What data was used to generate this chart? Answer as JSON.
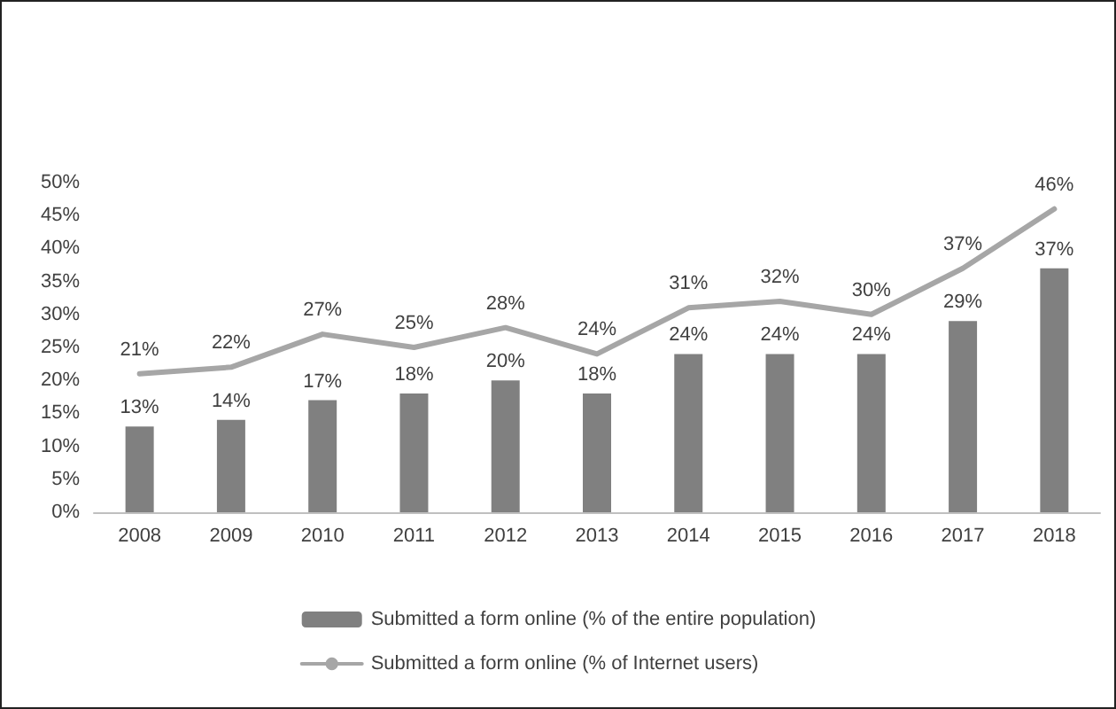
{
  "chart_data": {
    "type": "bar",
    "categories": [
      "2008",
      "2009",
      "2010",
      "2011",
      "2012",
      "2013",
      "2014",
      "2015",
      "2016",
      "2017",
      "2018"
    ],
    "series": [
      {
        "name": "Submitted a form online (% of the entire population)",
        "color": "#808080",
        "values": [
          13,
          14,
          17,
          18,
          20,
          18,
          24,
          24,
          24,
          29,
          37
        ],
        "value_labels": [
          "13%",
          "14%",
          "17%",
          "18%",
          "20%",
          "18%",
          "24%",
          "24%",
          "24%",
          "29%",
          "37%"
        ]
      },
      {
        "type": "line",
        "name": "Submitted a form online (% of Internet users)",
        "color": "#a6a6a6",
        "values": [
          21,
          22,
          27,
          25,
          28,
          24,
          31,
          32,
          30,
          37,
          46
        ],
        "value_labels": [
          "21%",
          "22%",
          "27%",
          "25%",
          "28%",
          "24%",
          "31%",
          "32%",
          "30%",
          "37%",
          "46%"
        ]
      }
    ],
    "ylim": [
      0,
      50
    ],
    "yticks": [
      {
        "value": 0,
        "label": "0%"
      },
      {
        "value": 5,
        "label": "5%"
      },
      {
        "value": 10,
        "label": "10%"
      },
      {
        "value": 15,
        "label": "15%"
      },
      {
        "value": 20,
        "label": "20%"
      },
      {
        "value": 25,
        "label": "25%"
      },
      {
        "value": 30,
        "label": "30%"
      },
      {
        "value": 35,
        "label": "35%"
      },
      {
        "value": 40,
        "label": "40%"
      },
      {
        "value": 45,
        "label": "45%"
      },
      {
        "value": 50,
        "label": "50%"
      }
    ],
    "legend": "bottom",
    "grid": false,
    "marker": "none",
    "line_style": "solid"
  }
}
